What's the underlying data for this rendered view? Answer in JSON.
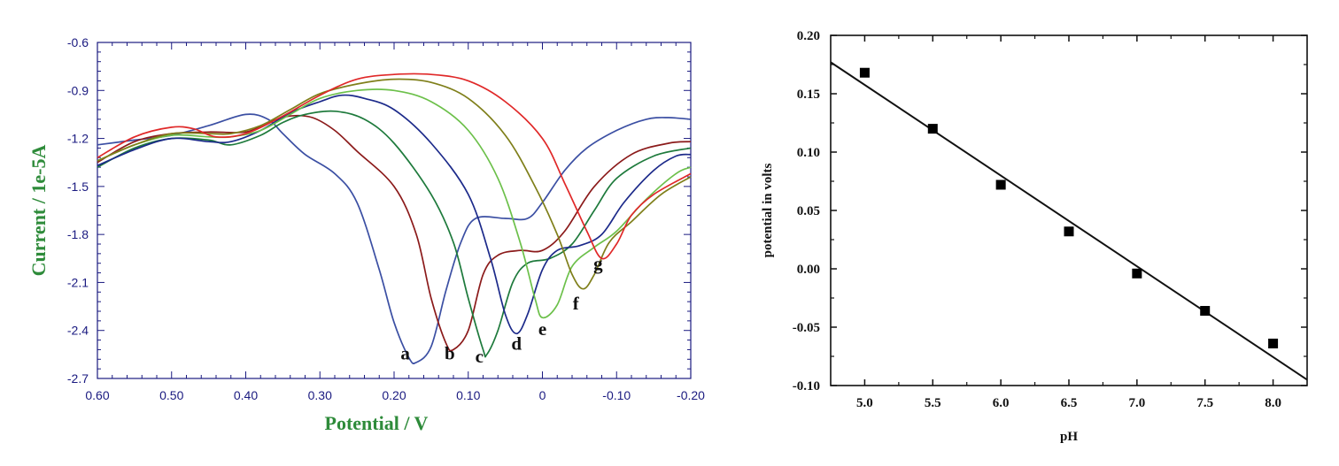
{
  "chart_data": [
    {
      "type": "line",
      "title": "",
      "xlabel": "Potential / V",
      "ylabel": "Current / 1e-5A",
      "xlim": [
        0.6,
        -0.2
      ],
      "ylim": [
        -2.7,
        -0.6
      ],
      "x_ticks": [
        "0.60",
        "0.50",
        "0.40",
        "0.30",
        "0.20",
        "0.10",
        "0",
        "-0.10",
        "-0.20"
      ],
      "y_ticks": [
        "-0.6",
        "-0.9",
        "-1.2",
        "-1.5",
        "-1.8",
        "-2.1",
        "-2.4",
        "-2.7"
      ],
      "grid": false,
      "series": [
        {
          "name": "a",
          "label": "a",
          "color": "#3b4fa3",
          "points": [
            [
              0.6,
              -1.24
            ],
            [
              0.55,
              -1.21
            ],
            [
              0.5,
              -1.18
            ],
            [
              0.45,
              -1.12
            ],
            [
              0.4,
              -1.05
            ],
            [
              0.37,
              -1.08
            ],
            [
              0.35,
              -1.17
            ],
            [
              0.32,
              -1.3
            ],
            [
              0.28,
              -1.42
            ],
            [
              0.25,
              -1.6
            ],
            [
              0.22,
              -2.02
            ],
            [
              0.2,
              -2.35
            ],
            [
              0.18,
              -2.57
            ],
            [
              0.17,
              -2.6
            ],
            [
              0.15,
              -2.5
            ],
            [
              0.13,
              -2.15
            ],
            [
              0.11,
              -1.85
            ],
            [
              0.09,
              -1.7
            ],
            [
              0.05,
              -1.7
            ],
            [
              0.02,
              -1.7
            ],
            [
              0.0,
              -1.6
            ],
            [
              -0.03,
              -1.4
            ],
            [
              -0.06,
              -1.26
            ],
            [
              -0.1,
              -1.15
            ],
            [
              -0.14,
              -1.08
            ],
            [
              -0.17,
              -1.07
            ],
            [
              -0.2,
              -1.08
            ]
          ],
          "label_at": [
            0.185,
            -2.58
          ]
        },
        {
          "name": "b",
          "label": "b",
          "color": "#8b1a1a",
          "points": [
            [
              0.6,
              -1.35
            ],
            [
              0.55,
              -1.22
            ],
            [
              0.5,
              -1.17
            ],
            [
              0.45,
              -1.16
            ],
            [
              0.4,
              -1.16
            ],
            [
              0.37,
              -1.1
            ],
            [
              0.34,
              -1.06
            ],
            [
              0.31,
              -1.07
            ],
            [
              0.28,
              -1.15
            ],
            [
              0.25,
              -1.28
            ],
            [
              0.2,
              -1.5
            ],
            [
              0.17,
              -1.8
            ],
            [
              0.15,
              -2.2
            ],
            [
              0.13,
              -2.48
            ],
            [
              0.12,
              -2.52
            ],
            [
              0.1,
              -2.4
            ],
            [
              0.08,
              -2.05
            ],
            [
              0.06,
              -1.93
            ],
            [
              0.03,
              -1.9
            ],
            [
              0.0,
              -1.9
            ],
            [
              -0.03,
              -1.78
            ],
            [
              -0.07,
              -1.5
            ],
            [
              -0.12,
              -1.3
            ],
            [
              -0.17,
              -1.23
            ],
            [
              -0.2,
              -1.22
            ]
          ],
          "label_at": [
            0.125,
            -2.58
          ]
        },
        {
          "name": "c",
          "label": "c",
          "color": "#1e7a3c",
          "points": [
            [
              0.6,
              -1.38
            ],
            [
              0.55,
              -1.26
            ],
            [
              0.5,
              -1.2
            ],
            [
              0.45,
              -1.21
            ],
            [
              0.42,
              -1.24
            ],
            [
              0.38,
              -1.18
            ],
            [
              0.35,
              -1.1
            ],
            [
              0.32,
              -1.05
            ],
            [
              0.28,
              -1.03
            ],
            [
              0.24,
              -1.08
            ],
            [
              0.2,
              -1.23
            ],
            [
              0.15,
              -1.55
            ],
            [
              0.12,
              -1.85
            ],
            [
              0.1,
              -2.2
            ],
            [
              0.08,
              -2.52
            ],
            [
              0.075,
              -2.55
            ],
            [
              0.06,
              -2.4
            ],
            [
              0.04,
              -2.1
            ],
            [
              0.02,
              -1.98
            ],
            [
              -0.01,
              -1.95
            ],
            [
              -0.04,
              -1.86
            ],
            [
              -0.07,
              -1.65
            ],
            [
              -0.1,
              -1.45
            ],
            [
              -0.15,
              -1.31
            ],
            [
              -0.2,
              -1.26
            ]
          ],
          "label_at": [
            0.085,
            -2.6
          ]
        },
        {
          "name": "d",
          "label": "d",
          "color": "#1c2a8a",
          "points": [
            [
              0.6,
              -1.37
            ],
            [
              0.55,
              -1.27
            ],
            [
              0.5,
              -1.2
            ],
            [
              0.45,
              -1.22
            ],
            [
              0.42,
              -1.22
            ],
            [
              0.38,
              -1.15
            ],
            [
              0.34,
              -1.04
            ],
            [
              0.3,
              -0.97
            ],
            [
              0.27,
              -0.93
            ],
            [
              0.24,
              -0.95
            ],
            [
              0.2,
              -1.02
            ],
            [
              0.15,
              -1.23
            ],
            [
              0.1,
              -1.55
            ],
            [
              0.07,
              -1.95
            ],
            [
              0.05,
              -2.3
            ],
            [
              0.035,
              -2.42
            ],
            [
              0.02,
              -2.3
            ],
            [
              0.0,
              -2.02
            ],
            [
              -0.02,
              -1.9
            ],
            [
              -0.05,
              -1.87
            ],
            [
              -0.08,
              -1.8
            ],
            [
              -0.11,
              -1.6
            ],
            [
              -0.15,
              -1.4
            ],
            [
              -0.18,
              -1.31
            ],
            [
              -0.2,
              -1.3
            ]
          ],
          "label_at": [
            0.035,
            -2.52
          ]
        },
        {
          "name": "e",
          "label": "e",
          "color": "#6cc04a",
          "points": [
            [
              0.6,
              -1.34
            ],
            [
              0.55,
              -1.24
            ],
            [
              0.5,
              -1.18
            ],
            [
              0.45,
              -1.19
            ],
            [
              0.42,
              -1.19
            ],
            [
              0.38,
              -1.15
            ],
            [
              0.34,
              -1.05
            ],
            [
              0.3,
              -0.95
            ],
            [
              0.25,
              -0.9
            ],
            [
              0.2,
              -0.9
            ],
            [
              0.15,
              -0.97
            ],
            [
              0.1,
              -1.15
            ],
            [
              0.06,
              -1.45
            ],
            [
              0.03,
              -1.85
            ],
            [
              0.01,
              -2.2
            ],
            [
              0.0,
              -2.32
            ],
            [
              -0.02,
              -2.24
            ],
            [
              -0.04,
              -2.0
            ],
            [
              -0.07,
              -1.88
            ],
            [
              -0.1,
              -1.78
            ],
            [
              -0.14,
              -1.58
            ],
            [
              -0.18,
              -1.42
            ],
            [
              -0.2,
              -1.38
            ]
          ],
          "label_at": [
            0.0,
            -2.43
          ]
        },
        {
          "name": "f",
          "label": "f",
          "color": "#7f7f1a",
          "points": [
            [
              0.6,
              -1.34
            ],
            [
              0.55,
              -1.24
            ],
            [
              0.5,
              -1.17
            ],
            [
              0.45,
              -1.17
            ],
            [
              0.42,
              -1.17
            ],
            [
              0.38,
              -1.12
            ],
            [
              0.34,
              -1.02
            ],
            [
              0.3,
              -0.92
            ],
            [
              0.25,
              -0.86
            ],
            [
              0.2,
              -0.83
            ],
            [
              0.15,
              -0.85
            ],
            [
              0.1,
              -0.95
            ],
            [
              0.05,
              -1.18
            ],
            [
              0.01,
              -1.5
            ],
            [
              -0.02,
              -1.8
            ],
            [
              -0.04,
              -2.05
            ],
            [
              -0.055,
              -2.14
            ],
            [
              -0.07,
              -2.05
            ],
            [
              -0.09,
              -1.85
            ],
            [
              -0.12,
              -1.72
            ],
            [
              -0.16,
              -1.55
            ],
            [
              -0.2,
              -1.44
            ]
          ],
          "label_at": [
            -0.045,
            -2.27
          ]
        },
        {
          "name": "g",
          "label": "g",
          "color": "#e02828",
          "points": [
            [
              0.6,
              -1.32
            ],
            [
              0.55,
              -1.19
            ],
            [
              0.5,
              -1.13
            ],
            [
              0.47,
              -1.14
            ],
            [
              0.44,
              -1.19
            ],
            [
              0.4,
              -1.17
            ],
            [
              0.35,
              -1.06
            ],
            [
              0.3,
              -0.93
            ],
            [
              0.25,
              -0.83
            ],
            [
              0.2,
              -0.8
            ],
            [
              0.15,
              -0.8
            ],
            [
              0.1,
              -0.84
            ],
            [
              0.05,
              -0.97
            ],
            [
              0.0,
              -1.2
            ],
            [
              -0.03,
              -1.48
            ],
            [
              -0.06,
              -1.78
            ],
            [
              -0.08,
              -1.95
            ],
            [
              -0.1,
              -1.86
            ],
            [
              -0.12,
              -1.68
            ],
            [
              -0.15,
              -1.55
            ],
            [
              -0.2,
              -1.42
            ]
          ],
          "label_at": [
            -0.075,
            -2.02
          ]
        }
      ]
    },
    {
      "type": "scatter",
      "title": "",
      "xlabel": "pH",
      "ylabel": "potential in volts",
      "xlim": [
        4.75,
        8.25
      ],
      "ylim": [
        -0.1,
        0.2
      ],
      "x_ticks": [
        "5.0",
        "5.5",
        "6.0",
        "6.5",
        "7.0",
        "7.5",
        "8.0"
      ],
      "y_ticks": [
        "-0.10",
        "-0.05",
        "0.00",
        "0.05",
        "0.10",
        "0.15",
        "0.20"
      ],
      "grid": false,
      "points": [
        {
          "x": 5.0,
          "y": 0.168
        },
        {
          "x": 5.5,
          "y": 0.12
        },
        {
          "x": 6.0,
          "y": 0.072
        },
        {
          "x": 6.5,
          "y": 0.032
        },
        {
          "x": 7.0,
          "y": -0.004
        },
        {
          "x": 7.5,
          "y": -0.036
        },
        {
          "x": 8.0,
          "y": -0.064
        }
      ],
      "fit_line": {
        "x": [
          4.75,
          8.25
        ],
        "y": [
          0.177,
          -0.095
        ]
      }
    }
  ]
}
